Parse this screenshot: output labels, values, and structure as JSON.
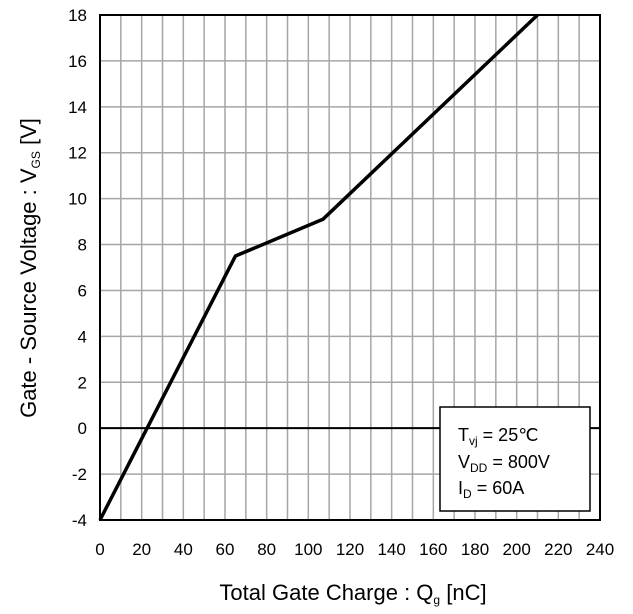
{
  "chart_data": {
    "type": "line",
    "title": "",
    "xlabel": {
      "main": "Total Gate Charge : Q",
      "sub": "g",
      "unit": " [nC]"
    },
    "ylabel": {
      "main": "Gate - Source Voltage : V",
      "sub": "GS",
      "unit": " [V]"
    },
    "xlim": [
      0,
      240
    ],
    "ylim": [
      -4,
      18
    ],
    "xticks": [
      0,
      20,
      40,
      60,
      80,
      100,
      120,
      140,
      160,
      180,
      200,
      220,
      240
    ],
    "yticks": [
      -4,
      -2,
      0,
      2,
      4,
      6,
      8,
      10,
      12,
      14,
      16,
      18
    ],
    "grid": true,
    "zero_line": true,
    "series": [
      {
        "x": [
          0,
          65,
          107,
          210
        ],
        "y": [
          -4,
          7.5,
          9.1,
          18
        ]
      }
    ],
    "conditions": [
      {
        "main": "T",
        "sub": "vj",
        "rest": " = 25℃"
      },
      {
        "main": "V",
        "sub": "DD",
        "rest": " = 800V"
      },
      {
        "main": "I",
        "sub": "D",
        "rest": " = 60A"
      }
    ],
    "conditions_placement": "bottom-right"
  }
}
